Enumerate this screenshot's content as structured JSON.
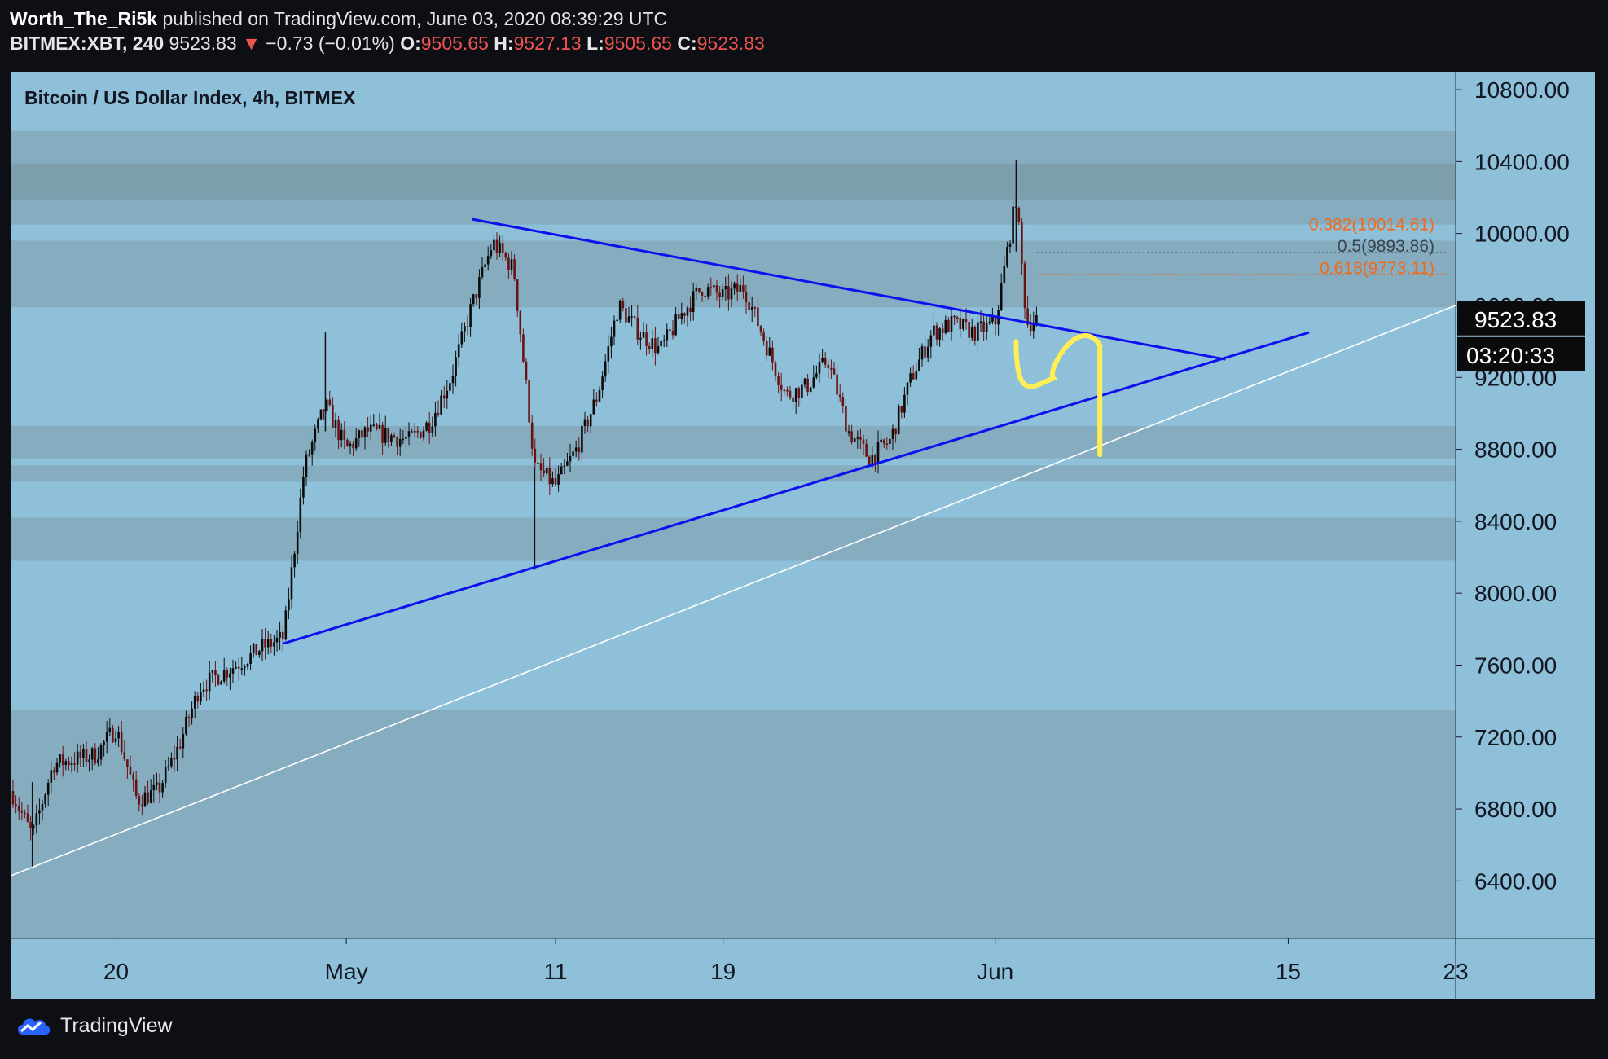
{
  "header": {
    "author": "Worth_The_Ri5k",
    "published_text": "published on TradingView.com, June 03, 2020 08:39:29 UTC",
    "symbol": "BITMEX:XBT, 240",
    "last": "9523.83",
    "change_arrow": "▼",
    "change": "−0.73 (−0.01%)",
    "o_label": "O:",
    "o_val": "9505.65",
    "h_label": "H:",
    "h_val": "9527.13",
    "l_label": "L:",
    "l_val": "9505.65",
    "c_label": "C:",
    "c_val": "9523.83"
  },
  "footer": {
    "brand": "TradingView",
    "logo_icon": "tradingview-cloud-icon"
  },
  "colors": {
    "background": "#0d0f14",
    "plot_bg": "#8fc0d9",
    "zone_band": "#82a8b8",
    "zone_band_dark": "#7b9ba9",
    "trendline": "#0f10ee",
    "support_line": "#ffffff",
    "projection": "#ffee55",
    "fib_orange": "#f06a1c",
    "fib_mid": "#3b4350",
    "candle_up": "#0b0b0b",
    "candle_down": "#6a1212"
  },
  "chart_data": {
    "type": "candlestick",
    "title": "Bitcoin / US Dollar Index, 4h, BITMEX",
    "x_ticks": [
      "20",
      "May",
      "11",
      "19",
      "Jun",
      "15",
      "23"
    ],
    "y_ticks": [
      "10800.00",
      "10400.00",
      "10000.00",
      "9600.00",
      "9200.00",
      "8800.00",
      "8400.00",
      "8000.00",
      "7600.00",
      "7200.00",
      "6800.00",
      "6400.00"
    ],
    "ylim": [
      6080,
      10900
    ],
    "x_tick_dates": [
      "2020-04-20",
      "2020-05-01",
      "2020-05-11",
      "2020-05-19",
      "2020-06-01",
      "2020-06-15",
      "2020-06-23"
    ],
    "date_range": [
      "2020-04-15",
      "2020-06-23"
    ],
    "last_price": "9523.83",
    "countdown": "03:20:33",
    "price_path": [
      [
        "2020-04-15",
        6900
      ],
      [
        "2020-04-16",
        6650
      ],
      [
        "2020-04-17",
        7050
      ],
      [
        "2020-04-19",
        7100
      ],
      [
        "2020-04-20",
        7250
      ],
      [
        "2020-04-21",
        6850
      ],
      [
        "2020-04-22",
        6900
      ],
      [
        "2020-04-23",
        7150
      ],
      [
        "2020-04-24",
        7480
      ],
      [
        "2020-04-25",
        7550
      ],
      [
        "2020-04-26",
        7620
      ],
      [
        "2020-04-27",
        7700
      ],
      [
        "2020-04-28",
        7750
      ],
      [
        "2020-04-29",
        8700
      ],
      [
        "2020-04-30",
        9050
      ],
      [
        "2020-05-01",
        8800
      ],
      [
        "2020-05-02",
        8900
      ],
      [
        "2020-05-04",
        8850
      ],
      [
        "2020-05-05",
        8950
      ],
      [
        "2020-05-06",
        9200
      ],
      [
        "2020-05-07",
        9600
      ],
      [
        "2020-05-08",
        9950
      ],
      [
        "2020-05-09",
        9800
      ],
      [
        "2020-05-10",
        8700
      ],
      [
        "2020-05-11",
        8600
      ],
      [
        "2020-05-12",
        8800
      ],
      [
        "2020-05-13",
        9100
      ],
      [
        "2020-05-14",
        9600
      ],
      [
        "2020-05-15",
        9450
      ],
      [
        "2020-05-16",
        9350
      ],
      [
        "2020-05-17",
        9550
      ],
      [
        "2020-05-18",
        9700
      ],
      [
        "2020-05-19",
        9650
      ],
      [
        "2020-05-20",
        9700
      ],
      [
        "2020-05-21",
        9400
      ],
      [
        "2020-05-22",
        9100
      ],
      [
        "2020-05-23",
        9150
      ],
      [
        "2020-05-24",
        9300
      ],
      [
        "2020-05-25",
        8900
      ],
      [
        "2020-05-26",
        8750
      ],
      [
        "2020-05-27",
        8850
      ],
      [
        "2020-05-28",
        9200
      ],
      [
        "2020-05-29",
        9450
      ],
      [
        "2020-05-30",
        9500
      ],
      [
        "2020-05-31",
        9450
      ],
      [
        "2020-06-01",
        9500
      ],
      [
        "2020-06-02",
        10200
      ],
      [
        "2020-06-02T12",
        9500
      ],
      [
        "2020-06-03",
        9524
      ]
    ],
    "zones": [
      [
        10050,
        10570
      ],
      [
        10190,
        10390
      ],
      [
        9590,
        9960
      ],
      [
        8750,
        8930
      ],
      [
        8620,
        8710
      ],
      [
        8180,
        8420
      ],
      [
        6080,
        7350
      ]
    ],
    "fibonacci": [
      {
        "label": "0.382(10014.61)",
        "value": 10014.61
      },
      {
        "label": "0.5(9893.86)",
        "value": 9893.86
      },
      {
        "label": "0.618(9773.11)",
        "value": 9773.11
      }
    ],
    "annotations": [
      {
        "type": "trendline",
        "name": "descending-resistance",
        "points": [
          [
            "2020-05-07",
            10080
          ],
          [
            "2020-06-12",
            9300
          ]
        ]
      },
      {
        "type": "trendline",
        "name": "ascending-support",
        "points": [
          [
            "2020-04-28",
            7720
          ],
          [
            "2020-06-16",
            9450
          ]
        ]
      },
      {
        "type": "trendline",
        "name": "long-term-support",
        "points": [
          [
            "2020-04-15",
            6430
          ],
          [
            "2020-06-23",
            9600
          ]
        ]
      },
      {
        "type": "projection",
        "name": "yellow-path",
        "points": [
          [
            "2020-06-02",
            9400
          ],
          [
            "2020-06-03",
            9150
          ],
          [
            "2020-06-05",
            9420
          ],
          [
            "2020-06-06",
            9380
          ],
          [
            "2020-06-06",
            8770
          ]
        ]
      }
    ]
  }
}
